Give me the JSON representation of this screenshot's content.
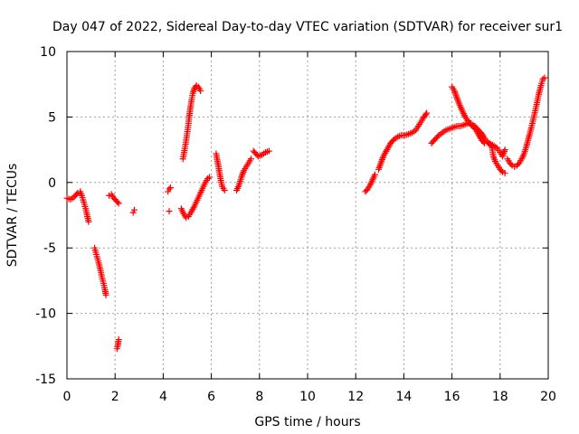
{
  "chart_data": {
    "type": "scatter",
    "title": "Day 047 of 2022, Sidereal Day-to-day VTEC variation (SDTVAR) for receiver sur1",
    "xlabel": "GPS time / hours",
    "ylabel": "SDTVAR / TECUs",
    "xlim": [
      0,
      20
    ],
    "ylim": [
      -15,
      10
    ],
    "xticks": [
      "0",
      "2",
      "4",
      "6",
      "8",
      "10",
      "12",
      "14",
      "16",
      "18",
      "20"
    ],
    "yticks": [
      "10",
      "5",
      "0",
      "-5",
      "-10",
      "-15"
    ],
    "grid": true,
    "marker": "+",
    "color": "#ff0000",
    "segments": [
      [
        [
          0.0,
          -1.2
        ],
        [
          0.15,
          -1.3
        ],
        [
          0.3,
          -1.1
        ],
        [
          0.45,
          -0.8
        ],
        [
          0.55,
          -0.7
        ],
        [
          0.62,
          -1.0
        ],
        [
          0.7,
          -1.5
        ],
        [
          0.78,
          -2.0
        ],
        [
          0.85,
          -2.6
        ],
        [
          0.9,
          -3.0
        ]
      ],
      [
        [
          1.15,
          -5.0
        ],
        [
          1.22,
          -5.5
        ],
        [
          1.3,
          -6.0
        ],
        [
          1.38,
          -6.6
        ],
        [
          1.45,
          -7.2
        ],
        [
          1.52,
          -7.7
        ],
        [
          1.58,
          -8.2
        ],
        [
          1.62,
          -8.6
        ]
      ],
      [
        [
          1.75,
          -1.0
        ],
        [
          1.85,
          -0.9
        ],
        [
          1.95,
          -1.2
        ],
        [
          2.05,
          -1.4
        ],
        [
          2.15,
          -1.6
        ]
      ],
      [
        [
          2.08,
          -12.7
        ],
        [
          2.12,
          -12.4
        ],
        [
          2.15,
          -12.0
        ]
      ],
      [
        [
          2.75,
          -2.3
        ],
        [
          2.8,
          -2.1
        ]
      ],
      [
        [
          4.2,
          -0.7
        ],
        [
          4.25,
          -0.5
        ],
        [
          4.3,
          -0.4
        ]
      ],
      [
        [
          4.25,
          -2.2
        ]
      ],
      [
        [
          4.75,
          -2.0
        ],
        [
          4.85,
          -2.4
        ],
        [
          4.95,
          -2.7
        ],
        [
          5.05,
          -2.6
        ],
        [
          5.15,
          -2.3
        ],
        [
          5.3,
          -1.8
        ],
        [
          5.45,
          -1.2
        ],
        [
          5.6,
          -0.6
        ],
        [
          5.75,
          0.0
        ],
        [
          5.85,
          0.3
        ],
        [
          5.92,
          0.4
        ]
      ],
      [
        [
          4.82,
          1.8
        ],
        [
          4.9,
          2.6
        ],
        [
          4.97,
          3.4
        ],
        [
          5.03,
          4.2
        ],
        [
          5.08,
          5.0
        ],
        [
          5.13,
          5.7
        ],
        [
          5.18,
          6.3
        ],
        [
          5.23,
          6.8
        ],
        [
          5.3,
          7.2
        ],
        [
          5.38,
          7.4
        ],
        [
          5.46,
          7.3
        ],
        [
          5.55,
          7.0
        ]
      ],
      [
        [
          6.2,
          2.2
        ],
        [
          6.3,
          1.2
        ],
        [
          6.38,
          0.3
        ],
        [
          6.45,
          -0.3
        ],
        [
          6.55,
          -0.6
        ]
      ],
      [
        [
          7.05,
          -0.6
        ],
        [
          7.15,
          -0.2
        ],
        [
          7.25,
          0.4
        ],
        [
          7.35,
          0.9
        ],
        [
          7.45,
          1.2
        ],
        [
          7.55,
          1.5
        ],
        [
          7.65,
          1.8
        ]
      ],
      [
        [
          7.75,
          2.4
        ],
        [
          7.85,
          2.2
        ],
        [
          7.95,
          2.0
        ],
        [
          8.1,
          2.1
        ],
        [
          8.25,
          2.3
        ],
        [
          8.4,
          2.4
        ]
      ],
      [
        [
          12.4,
          -0.7
        ],
        [
          12.5,
          -0.5
        ],
        [
          12.6,
          -0.2
        ],
        [
          12.7,
          0.2
        ],
        [
          12.8,
          0.6
        ]
      ],
      [
        [
          12.95,
          1.0
        ],
        [
          13.05,
          1.5
        ],
        [
          13.15,
          2.0
        ],
        [
          13.3,
          2.5
        ],
        [
          13.45,
          3.0
        ],
        [
          13.6,
          3.3
        ],
        [
          13.75,
          3.5
        ],
        [
          13.9,
          3.6
        ],
        [
          14.05,
          3.6
        ],
        [
          14.2,
          3.7
        ],
        [
          14.35,
          3.8
        ],
        [
          14.5,
          4.0
        ],
        [
          14.6,
          4.3
        ],
        [
          14.7,
          4.6
        ],
        [
          14.8,
          4.9
        ],
        [
          14.88,
          5.1
        ],
        [
          14.95,
          5.3
        ]
      ],
      [
        [
          15.15,
          3.0
        ],
        [
          15.3,
          3.3
        ],
        [
          15.45,
          3.6
        ],
        [
          15.6,
          3.8
        ],
        [
          15.75,
          4.0
        ],
        [
          15.9,
          4.1
        ],
        [
          16.05,
          4.2
        ],
        [
          16.2,
          4.3
        ],
        [
          16.35,
          4.3
        ],
        [
          16.5,
          4.4
        ],
        [
          16.65,
          4.5
        ],
        [
          16.8,
          4.5
        ],
        [
          16.95,
          4.3
        ],
        [
          17.1,
          4.0
        ],
        [
          17.25,
          3.7
        ],
        [
          17.38,
          3.3
        ],
        [
          17.5,
          3.0
        ],
        [
          17.62,
          2.9
        ],
        [
          17.75,
          2.8
        ],
        [
          17.88,
          2.6
        ],
        [
          18.0,
          2.3
        ],
        [
          18.1,
          2.0
        ],
        [
          18.2,
          2.5
        ]
      ],
      [
        [
          16.0,
          7.3
        ],
        [
          16.1,
          7.0
        ],
        [
          16.2,
          6.5
        ],
        [
          16.3,
          6.0
        ],
        [
          16.42,
          5.5
        ],
        [
          16.55,
          5.0
        ],
        [
          16.7,
          4.6
        ],
        [
          16.85,
          4.3
        ],
        [
          17.0,
          4.0
        ],
        [
          17.12,
          3.6
        ],
        [
          17.25,
          3.2
        ],
        [
          17.35,
          3.0
        ],
        [
          17.45,
          3.1
        ],
        [
          17.55,
          3.0
        ],
        [
          17.65,
          2.8
        ],
        [
          17.72,
          2.0
        ],
        [
          17.8,
          1.6
        ],
        [
          17.9,
          1.3
        ],
        [
          18.0,
          1.0
        ],
        [
          18.1,
          0.8
        ],
        [
          18.2,
          0.7
        ]
      ],
      [
        [
          18.3,
          1.8
        ],
        [
          18.4,
          1.5
        ],
        [
          18.5,
          1.3
        ],
        [
          18.6,
          1.2
        ],
        [
          18.7,
          1.3
        ],
        [
          18.8,
          1.5
        ],
        [
          18.9,
          1.8
        ],
        [
          19.0,
          2.2
        ],
        [
          19.1,
          2.8
        ],
        [
          19.2,
          3.5
        ],
        [
          19.3,
          4.2
        ],
        [
          19.4,
          5.0
        ],
        [
          19.5,
          5.8
        ],
        [
          19.6,
          6.7
        ],
        [
          19.7,
          7.4
        ],
        [
          19.78,
          7.9
        ],
        [
          19.85,
          8.0
        ]
      ]
    ]
  }
}
